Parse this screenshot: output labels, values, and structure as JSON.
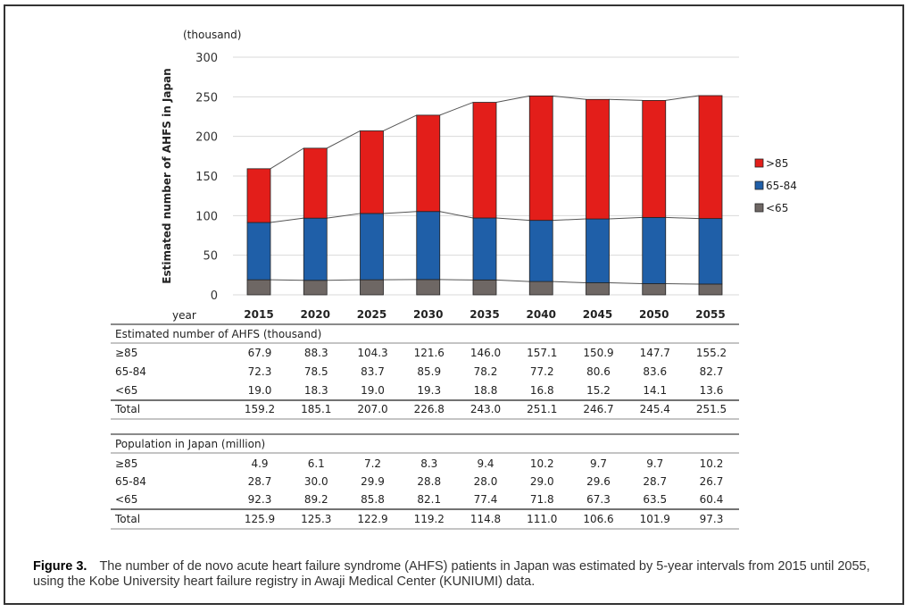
{
  "chart_data": {
    "type": "bar",
    "stacked": true,
    "unit_label": "(thousand)",
    "ylabel": "Estimated number of AHFS in Japan",
    "xlabel": "year",
    "ylim": [
      0,
      300
    ],
    "yticks": [
      0,
      50,
      100,
      150,
      200,
      250,
      300
    ],
    "grid": true,
    "legend_position": "right",
    "categories": [
      "2015",
      "2020",
      "2025",
      "2030",
      "2035",
      "2040",
      "2045",
      "2050",
      "2055"
    ],
    "series": [
      {
        "name": "<65",
        "color": "#6e6764",
        "values": [
          19.0,
          18.3,
          19.0,
          19.3,
          18.8,
          16.8,
          15.2,
          14.1,
          13.6
        ]
      },
      {
        "name": "65-84",
        "color": "#1f5fa8",
        "values": [
          72.3,
          78.5,
          83.7,
          85.9,
          78.2,
          77.2,
          80.6,
          83.6,
          82.7
        ]
      },
      {
        "name": ">85",
        "color": "#e31e1a",
        "values": [
          67.9,
          88.3,
          104.3,
          121.6,
          146.0,
          157.1,
          150.9,
          147.7,
          155.2
        ]
      }
    ],
    "legend": [
      {
        "name": ">85",
        "color": "#e31e1a"
      },
      {
        "name": "65-84",
        "color": "#1f5fa8"
      },
      {
        "name": "<65",
        "color": "#6e6764"
      }
    ],
    "connector_lines": true
  },
  "tables": [
    {
      "title": "Estimated number of AHFS (thousand)",
      "rows": [
        {
          "label": "≥85",
          "values": [
            "67.9",
            "88.3",
            "104.3",
            "121.6",
            "146.0",
            "157.1",
            "150.9",
            "147.7",
            "155.2"
          ]
        },
        {
          "label": "65-84",
          "values": [
            "72.3",
            "78.5",
            "83.7",
            "85.9",
            "78.2",
            "77.2",
            "80.6",
            "83.6",
            "82.7"
          ]
        },
        {
          "label": "<65",
          "values": [
            "19.0",
            "18.3",
            "19.0",
            "19.3",
            "18.8",
            "16.8",
            "15.2",
            "14.1",
            "13.6"
          ]
        }
      ],
      "total": {
        "label": "Total",
        "values": [
          "159.2",
          "185.1",
          "207.0",
          "226.8",
          "243.0",
          "251.1",
          "246.7",
          "245.4",
          "251.5"
        ]
      }
    },
    {
      "title": "Population in Japan (million)",
      "rows": [
        {
          "label": "≥85",
          "values": [
            "4.9",
            "6.1",
            "7.2",
            "8.3",
            "9.4",
            "10.2",
            "9.7",
            "9.7",
            "10.2"
          ]
        },
        {
          "label": "65-84",
          "values": [
            "28.7",
            "30.0",
            "29.9",
            "28.8",
            "28.0",
            "29.0",
            "29.6",
            "28.7",
            "26.7"
          ]
        },
        {
          "label": "<65",
          "values": [
            "92.3",
            "89.2",
            "85.8",
            "82.1",
            "77.4",
            "71.8",
            "67.3",
            "63.5",
            "60.4"
          ]
        }
      ],
      "total": {
        "label": "Total",
        "values": [
          "125.9",
          "125.3",
          "122.9",
          "119.2",
          "114.8",
          "111.0",
          "106.6",
          "101.9",
          "97.3"
        ]
      }
    }
  ],
  "caption": {
    "label": "Figure 3.",
    "text": "The number of de novo acute heart failure syndrome (AHFS) patients in Japan was estimated by 5-year intervals from 2015 until 2055, using the Kobe University heart failure registry in Awaji Medical Center (KUNIUMI) data."
  }
}
